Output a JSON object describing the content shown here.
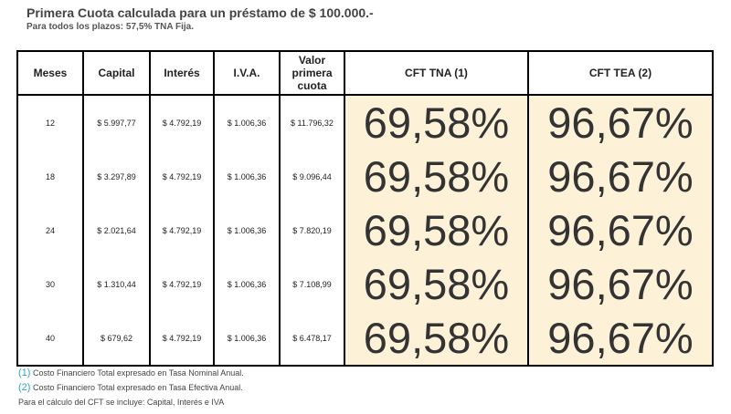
{
  "header": {
    "title": "Primera Cuota calculada para un préstamo de $ 100.000.-",
    "subtitle": "Para todos los plazos: 57,5% TNA Fija."
  },
  "table": {
    "columns": [
      "Meses",
      "Capital",
      "Interés",
      "I.V.A.",
      "Valor primera cuota",
      "CFT TNA (1)",
      "CFT TEA (2)"
    ],
    "rows": [
      [
        "12",
        "$ 5.997,77",
        "$ 4.792,19",
        "$ 1.006,36",
        "$ 11.796,32",
        "69,58%",
        "96,67%"
      ],
      [
        "18",
        "$ 3.297,89",
        "$ 4.792,19",
        "$ 1.006,36",
        "$ 9.096,44",
        "69,58%",
        "96,67%"
      ],
      [
        "24",
        "$ 2.021,64",
        "$ 4.792,19",
        "$ 1.006,36",
        "$ 7.820,19",
        "69,58%",
        "96,67%"
      ],
      [
        "30",
        "$ 1.310,44",
        "$ 4.792,19",
        "$ 1.006,36",
        "$ 7.108,99",
        "69,58%",
        "96,67%"
      ],
      [
        "40",
        "$ 679,62",
        "$ 4.792,19",
        "$ 1.006,36",
        "$ 6.478,17",
        "69,58%",
        "96,67%"
      ]
    ]
  },
  "notes": [
    {
      "marker": "(1)",
      "text": "Costo Financiero Total expresado en Tasa Nominal Anual."
    },
    {
      "marker": "(2)",
      "text": "Costo Financiero Total expresado en Tasa Efectiva Anual."
    }
  ],
  "footer": "Para el cálculo del CFT se incluye: Capital, Interés e IVA"
}
